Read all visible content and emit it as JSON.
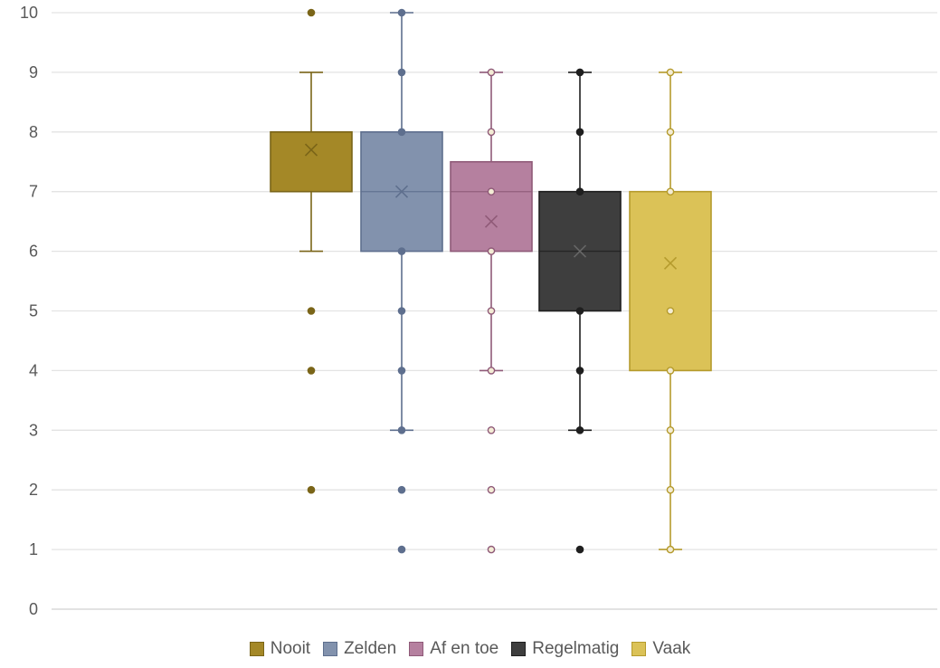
{
  "chart_data": {
    "type": "box",
    "ylim": [
      0,
      10
    ],
    "y_ticks": [
      "0",
      "1",
      "2",
      "3",
      "4",
      "5",
      "6",
      "7",
      "8",
      "9",
      "10"
    ],
    "grid": true,
    "legend_position": "bottom",
    "series": [
      {
        "name": "Nooit",
        "color": "#a48827",
        "border": "#7a6518",
        "q1": 7,
        "median": 8,
        "q3": 8,
        "mean": 7.7,
        "whisker_low": 6,
        "whisker_high": 9,
        "points": [
          2,
          4,
          5,
          10
        ],
        "filled_points": true
      },
      {
        "name": "Zelden",
        "color": "#8292ad",
        "border": "#5e6f8e",
        "q1": 6,
        "median": 7,
        "q3": 8,
        "mean": 7,
        "whisker_low": 3,
        "whisker_high": 10,
        "points": [
          1,
          2,
          3,
          4,
          5,
          6,
          8,
          9,
          10
        ],
        "filled_points": true
      },
      {
        "name": "Af en toe",
        "color": "#b5809f",
        "border": "#8f5a78",
        "q1": 6,
        "median": 7,
        "q3": 7.5,
        "mean": 6.5,
        "whisker_low": 4,
        "whisker_high": 9,
        "points": [
          1,
          2,
          3,
          4,
          5,
          6,
          7,
          8,
          9
        ],
        "filled_points": false
      },
      {
        "name": "Regelmatig",
        "color": "#3e3e3e",
        "border": "#1f1f1f",
        "q1": 5,
        "median": 6,
        "q3": 7,
        "mean": 6,
        "whisker_low": 3,
        "whisker_high": 9,
        "points": [
          1,
          3,
          4,
          5,
          7,
          8,
          9
        ],
        "filled_points": true
      },
      {
        "name": "Vaak",
        "color": "#dbc257",
        "border": "#b59b2d",
        "q1": 4,
        "median": 7,
        "q3": 7,
        "mean": 5.8,
        "whisker_low": 1,
        "whisker_high": 9,
        "points": [
          1,
          2,
          3,
          4,
          5,
          7,
          8,
          9
        ],
        "filled_points": false
      }
    ]
  }
}
